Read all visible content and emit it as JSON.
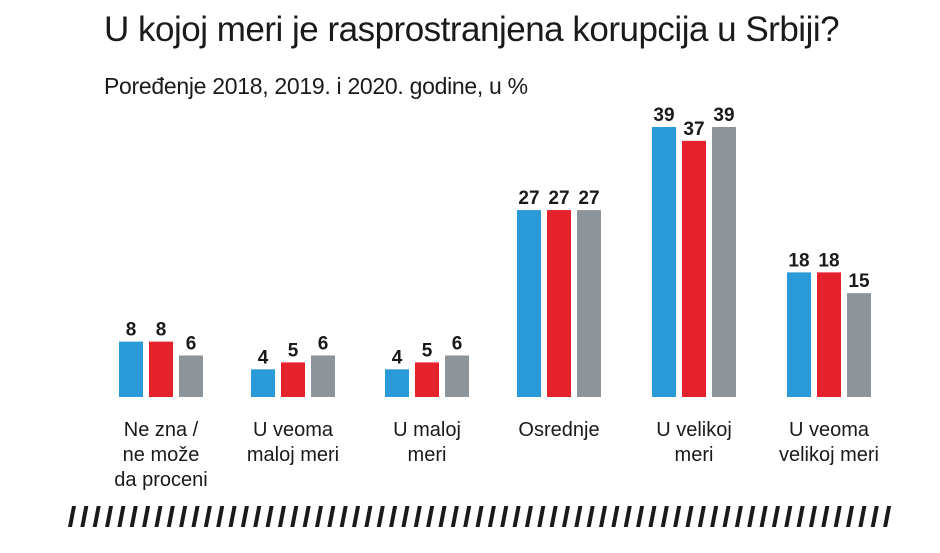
{
  "title": "U kojoj meri je rasprostranjena korupcija u Srbiji?",
  "subtitle": "Poređenje 2018, 2019. i 2020. godine, u %",
  "colors": {
    "series_2018": "#2a9ad8",
    "series_2019": "#e5212b",
    "series_2020": "#8e959a",
    "stripe": "#1a1a1a"
  },
  "chart_data": {
    "type": "bar",
    "categories": [
      [
        "Ne zna /",
        "ne može",
        "da proceni"
      ],
      [
        "U veoma",
        "maloj meri"
      ],
      [
        "U maloj",
        "meri"
      ],
      [
        "Osrednje"
      ],
      [
        "U velikoj",
        "meri"
      ],
      [
        "U veoma",
        "velikoj meri"
      ]
    ],
    "series": [
      {
        "values": [
          8,
          4,
          4,
          27,
          39,
          18
        ]
      },
      {
        "values": [
          8,
          5,
          5,
          27,
          37,
          18
        ]
      },
      {
        "values": [
          6,
          6,
          6,
          27,
          39,
          15
        ]
      }
    ],
    "ylim": [
      0,
      39
    ],
    "grid": false,
    "legend": "none"
  }
}
